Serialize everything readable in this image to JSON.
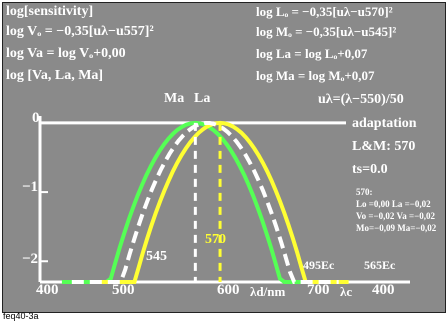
{
  "colors": {
    "background": "#8a8a8a",
    "white": "#ffffff",
    "yellow": "#ffff33",
    "green": "#55ff55",
    "black": "#000000"
  },
  "header": {
    "left": [
      "log[sensitivity]",
      "log Vₒ = −0,35[uλ−u557]²",
      "log Va = log Vₒ+0,00",
      "log [Va, La, Ma]"
    ],
    "right": [
      "log Lₒ = −0,35[uλ−u570]²",
      "log Mₒ = −0,35[uλ−u545]²",
      "log La = log Lₒ+0,07",
      "log Ma = log Mₒ+0,07",
      "uλ=(λ−550)/50"
    ]
  },
  "legend_right": {
    "title": "adaptation",
    "lm": "L&M: 570",
    "ts": "ts=0.0",
    "block_title": "570:",
    "rows": [
      "Lo =0,00   La =−0,02",
      "Vo =−0,02  Va =−0,02",
      "Mo=−0,09  Ma=−0,02"
    ]
  },
  "top_markers": {
    "ma": "Ma",
    "la": "La"
  },
  "annotations": {
    "m545": "545",
    "m570": "570",
    "c495": "495Ec",
    "c565": "565Ec"
  },
  "footer_code": "feq40-3a",
  "chart_data": {
    "type": "line",
    "xlabel": "λd/nm",
    "xlabel_c": "λc",
    "x_ticks": [
      "400",
      "500",
      "600",
      "700",
      "400"
    ],
    "y_ticks": [
      "0",
      "−1",
      "−2"
    ],
    "xlim": [
      400,
      750
    ],
    "ylim": [
      -2.3,
      0.1
    ],
    "series": [
      {
        "color": "green",
        "peak": 545,
        "x": [
          410,
          450,
          500,
          545,
          590,
          640,
          680
        ],
        "y": [
          -2.3,
          -1.19,
          -0.14,
          0.0,
          -0.28,
          -1.3,
          -2.3
        ]
      },
      {
        "color": "yellow",
        "peak": 570,
        "x": [
          440,
          480,
          530,
          570,
          610,
          660,
          700
        ],
        "y": [
          -2.3,
          -1.12,
          -0.14,
          0.0,
          -0.21,
          -1.21,
          -2.3
        ]
      },
      {
        "color": "white",
        "peak": 557,
        "x": [
          420,
          460,
          510,
          557,
          600,
          650,
          690
        ],
        "y": [
          -2.3,
          -1.26,
          -0.17,
          0.0,
          -0.29,
          -1.41,
          -2.3
        ]
      }
    ]
  }
}
